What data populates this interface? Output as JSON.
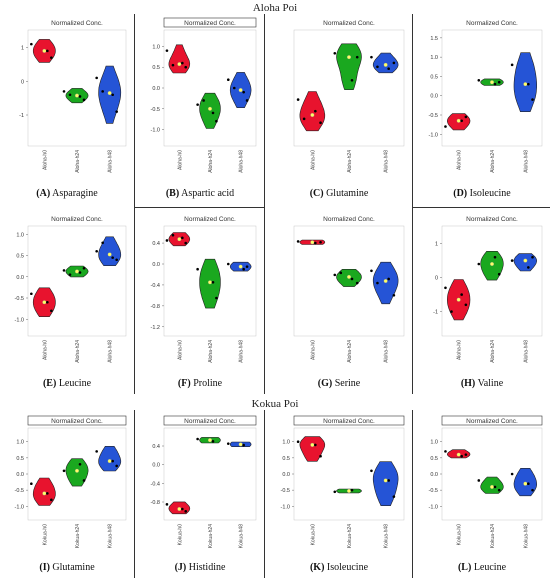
{
  "sections": {
    "top_title": "Aloha Poi",
    "bottom_title": "Kokua Poi"
  },
  "colors": {
    "group1": "#e8132e",
    "group2": "#1aa81f",
    "group3": "#2554d6",
    "median_marker": "#ffff66",
    "points": "#000000"
  },
  "chart_data": [
    {
      "id": "A",
      "letter": "(A)",
      "name": "Asparagine",
      "type": "violin",
      "title": "Normalized Conc.",
      "title_boxed": false,
      "categories": [
        "Aloha-h0",
        "Aloha-h24",
        "Aloha-h48"
      ],
      "yticks": [
        "1",
        "0",
        "-1"
      ],
      "ylim": [
        -1.8,
        1.4
      ],
      "series": [
        {
          "values": [
            1.1,
            0.9,
            0.7
          ]
        },
        {
          "values": [
            -0.3,
            -0.45,
            -0.55,
            -0.4
          ]
        },
        {
          "values": [
            0.1,
            -0.4,
            -0.9,
            -0.3
          ]
        }
      ]
    },
    {
      "id": "B",
      "letter": "(B)",
      "name": "Aspartic acid",
      "type": "violin",
      "title": "Normalized Conc.",
      "title_boxed": true,
      "categories": [
        "Aloha-h0",
        "Aloha-h24",
        "Aloha-h48"
      ],
      "yticks": [
        "1.0",
        "0.5",
        "0.0",
        "-0.5",
        "-1.0"
      ],
      "ylim": [
        -1.3,
        1.3
      ],
      "series": [
        {
          "values": [
            0.9,
            0.6,
            0.5,
            0.55
          ]
        },
        {
          "values": [
            -0.4,
            -0.6,
            -0.8,
            -0.3
          ]
        },
        {
          "values": [
            0.2,
            -0.1,
            -0.3,
            0.0
          ]
        }
      ]
    },
    {
      "id": "C",
      "letter": "(C)",
      "name": "Glutamine",
      "type": "violin",
      "title": "Normalized Conc.",
      "title_boxed": false,
      "categories": [
        "Aloha-h0",
        "Aloha-h24",
        "Aloha-h48"
      ],
      "yticks": [],
      "ylim": [
        -1.6,
        1.2
      ],
      "series": [
        {
          "values": [
            -0.5,
            -0.8,
            -1.1,
            -1.0
          ]
        },
        {
          "values": [
            0.7,
            0.0,
            0.6
          ]
        },
        {
          "values": [
            0.6,
            0.3,
            0.45,
            0.35
          ]
        }
      ]
    },
    {
      "id": "D",
      "letter": "(D)",
      "name": "Isoleucine",
      "type": "violin",
      "title": "Normalized Conc.",
      "title_boxed": false,
      "categories": [
        "Aloha-h0",
        "Aloha-h24",
        "Aloha-h48"
      ],
      "yticks": [
        "1.5",
        "1.0",
        "0.5",
        "0.0",
        "-0.5",
        "-1.0"
      ],
      "ylim": [
        -1.2,
        1.6
      ],
      "series": [
        {
          "values": [
            -0.8,
            -0.65,
            -0.55
          ]
        },
        {
          "values": [
            0.4,
            0.3,
            0.35
          ]
        },
        {
          "values": [
            0.8,
            0.3,
            -0.1
          ]
        }
      ]
    },
    {
      "id": "E",
      "letter": "(E)",
      "name": "Leucine",
      "type": "violin",
      "title": "Normalized Conc.",
      "title_boxed": false,
      "categories": [
        "Aloha-h0",
        "Aloha-h24",
        "Aloha-h48"
      ],
      "yticks": [
        "1.0",
        "0.5",
        "0.0",
        "-0.5",
        "-1.0"
      ],
      "ylim": [
        -1.3,
        1.1
      ],
      "series": [
        {
          "values": [
            -0.4,
            -0.6,
            -0.8
          ]
        },
        {
          "values": [
            0.15,
            0.1,
            0.2,
            0.05
          ]
        },
        {
          "values": [
            0.6,
            0.45,
            0.4,
            0.8
          ]
        }
      ]
    },
    {
      "id": "F",
      "letter": "(F)",
      "name": "Proline",
      "type": "violin",
      "title": "Normalized Conc.",
      "title_boxed": false,
      "categories": [
        "Aloha-h0",
        "Aloha-h24",
        "Aloha-h48"
      ],
      "yticks": [
        "0.4",
        "0.0",
        "-0.4",
        "-0.8",
        "-1.2"
      ],
      "ylim": [
        -1.3,
        0.65
      ],
      "series": [
        {
          "values": [
            0.45,
            0.5,
            0.4,
            0.55
          ]
        },
        {
          "values": [
            -0.1,
            -0.35,
            -0.65
          ]
        },
        {
          "values": [
            0.0,
            -0.1,
            -0.05
          ]
        }
      ]
    },
    {
      "id": "G",
      "letter": "(G)",
      "name": "Serine",
      "type": "violin",
      "title": "Normalized Conc.",
      "title_boxed": false,
      "categories": [
        "Aloha-h0",
        "Aloha-h24",
        "Aloha-h48"
      ],
      "yticks": [],
      "ylim": [
        -1.6,
        0.9
      ],
      "series": [
        {
          "values": [
            0.62,
            0.58,
            0.6
          ]
        },
        {
          "values": [
            -0.2,
            -0.3,
            -0.4,
            -0.15
          ]
        },
        {
          "values": [
            -0.1,
            -0.3,
            -0.7,
            -0.4
          ]
        }
      ]
    },
    {
      "id": "H",
      "letter": "(H)",
      "name": "Valine",
      "type": "violin",
      "title": "Normalized Conc.",
      "title_boxed": false,
      "categories": [
        "Aloha-h0",
        "Aloha-h24",
        "Aloha-h48"
      ],
      "yticks": [
        "1",
        "0",
        "-1"
      ],
      "ylim": [
        -1.6,
        1.4
      ],
      "series": [
        {
          "values": [
            -0.3,
            -0.5,
            -0.8,
            -1.0
          ]
        },
        {
          "values": [
            0.4,
            0.6,
            0.1
          ]
        },
        {
          "values": [
            0.5,
            0.3,
            0.6
          ]
        }
      ]
    },
    {
      "id": "I",
      "letter": "(I)",
      "name": "Glutamine",
      "type": "violin",
      "title": "Normalized Conc.",
      "title_boxed": true,
      "categories": [
        "Kokua-h0",
        "Kokua-h24",
        "Kokua-h48"
      ],
      "yticks": [
        "1.0",
        "0.5",
        "0.0",
        "-0.5",
        "-1.0"
      ],
      "ylim": [
        -1.3,
        1.3
      ],
      "series": [
        {
          "values": [
            -0.3,
            -0.6,
            -0.8
          ]
        },
        {
          "values": [
            0.1,
            0.3,
            -0.2
          ]
        },
        {
          "values": [
            0.7,
            0.4,
            0.25
          ]
        }
      ]
    },
    {
      "id": "J",
      "letter": "(J)",
      "name": "Histidine",
      "type": "violin",
      "title": "Normalized Conc.",
      "title_boxed": true,
      "categories": [
        "Kokua-h0",
        "Kokua-h24",
        "Kokua-h48"
      ],
      "yticks": [
        "0.4",
        "0.0",
        "-0.4",
        "-0.8"
      ],
      "ylim": [
        -1.1,
        0.7
      ],
      "series": [
        {
          "values": [
            -0.85,
            -0.95,
            -1.0
          ]
        },
        {
          "values": [
            0.55,
            0.5
          ]
        },
        {
          "values": [
            0.45,
            0.42
          ]
        }
      ]
    },
    {
      "id": "K",
      "letter": "(K)",
      "name": "Isoleucine",
      "type": "violin",
      "title": "Normalized Conc.",
      "title_boxed": true,
      "categories": [
        "Kokua-h0",
        "Kokua-h24",
        "Kokua-h48"
      ],
      "yticks": [
        "1.0",
        "0.5",
        "0.0",
        "-0.5",
        "-1.0"
      ],
      "ylim": [
        -1.3,
        1.3
      ],
      "series": [
        {
          "values": [
            1.0,
            0.9,
            0.55
          ]
        },
        {
          "values": [
            -0.55,
            -0.5
          ]
        },
        {
          "values": [
            0.1,
            -0.2,
            -0.7
          ]
        }
      ]
    },
    {
      "id": "L",
      "letter": "(L)",
      "name": "Leucine",
      "type": "violin",
      "title": "Normalized Conc.",
      "title_boxed": true,
      "categories": [
        "Kokua-h0",
        "Kokua-h24",
        "Kokua-h48"
      ],
      "yticks": [
        "1.0",
        "0.5",
        "0.0",
        "-0.5",
        "-1.0"
      ],
      "ylim": [
        -1.3,
        1.3
      ],
      "series": [
        {
          "values": [
            0.7,
            0.55,
            0.6
          ]
        },
        {
          "values": [
            -0.2,
            -0.4,
            -0.5
          ]
        },
        {
          "values": [
            0.0,
            -0.3,
            -0.5
          ]
        }
      ]
    }
  ]
}
